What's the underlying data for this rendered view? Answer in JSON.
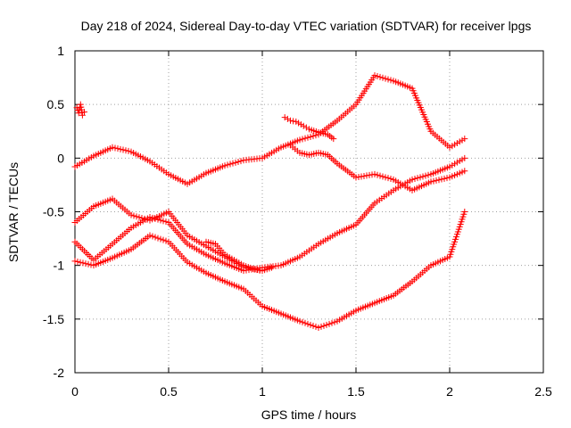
{
  "chart_data": {
    "type": "scatter",
    "title": "Day 218 of 2024, Sidereal Day-to-day VTEC variation (SDTVAR) for receiver lpgs",
    "xlabel": "GPS time / hours",
    "ylabel": "SDTVAR / TECUs",
    "xlim": [
      0,
      2.5
    ],
    "ylim": [
      -2,
      1
    ],
    "xticks": [
      0,
      0.5,
      1,
      1.5,
      2,
      2.5
    ],
    "xtick_labels": [
      "0",
      "0.5",
      "1",
      "1.5",
      "2",
      "2.5"
    ],
    "yticks": [
      -2,
      -1.5,
      -1,
      -0.5,
      0,
      0.5,
      1
    ],
    "ytick_labels": [
      "-2",
      "-1.5",
      "-1",
      "-0.5",
      "0",
      "0.5",
      "1"
    ],
    "grid": true,
    "marker": "plus",
    "color": "#ff0000",
    "series": [
      {
        "x": [
          0,
          0.1,
          0.2,
          0.3,
          0.4,
          0.5,
          0.6,
          0.7,
          0.8,
          0.9,
          1.0,
          1.1,
          1.2,
          1.3,
          1.4,
          1.5,
          1.6,
          1.7,
          1.8,
          1.9,
          2.0,
          2.08
        ],
        "y": [
          -0.08,
          0.02,
          0.1,
          0.06,
          -0.03,
          -0.15,
          -0.24,
          -0.14,
          -0.07,
          -0.02,
          0.0,
          0.1,
          0.17,
          0.22,
          0.35,
          0.5,
          0.77,
          0.72,
          0.65,
          0.25,
          0.1,
          0.18
        ]
      },
      {
        "x": [
          0.01,
          0.02,
          0.03,
          0.04,
          0.05
        ],
        "y": [
          0.47,
          0.42,
          0.5,
          0.4,
          0.43
        ]
      },
      {
        "x": [
          1.12,
          1.15,
          1.18,
          1.22,
          1.25,
          1.3,
          1.35,
          1.38
        ],
        "y": [
          0.38,
          0.35,
          0.34,
          0.3,
          0.27,
          0.24,
          0.22,
          0.18
        ]
      },
      {
        "x": [
          1.15,
          1.2,
          1.25,
          1.3,
          1.35,
          1.4,
          1.5,
          1.6,
          1.7,
          1.8,
          1.9,
          2.0,
          2.08
        ],
        "y": [
          0.12,
          0.05,
          0.03,
          0.05,
          0.03,
          -0.05,
          -0.18,
          -0.15,
          -0.2,
          -0.3,
          -0.22,
          -0.18,
          -0.12
        ]
      },
      {
        "x": [
          0,
          0.1,
          0.2,
          0.3,
          0.4,
          0.5,
          0.6,
          0.7,
          0.8,
          0.9,
          1.0,
          1.05
        ],
        "y": [
          -0.6,
          -0.45,
          -0.38,
          -0.53,
          -0.58,
          -0.5,
          -0.72,
          -0.82,
          -0.92,
          -1.02,
          -1.05,
          -1.02
        ]
      },
      {
        "x": [
          0,
          0.1,
          0.2,
          0.3,
          0.4,
          0.5,
          0.6,
          0.7,
          0.8,
          0.9,
          1.0,
          1.1,
          1.2,
          1.3,
          1.4,
          1.5,
          1.6,
          1.7,
          1.8,
          1.9,
          2.0,
          2.08
        ],
        "y": [
          -0.78,
          -0.95,
          -0.8,
          -0.65,
          -0.55,
          -0.6,
          -0.8,
          -0.9,
          -0.98,
          -1.05,
          -1.02,
          -1.0,
          -0.92,
          -0.8,
          -0.7,
          -0.62,
          -0.42,
          -0.3,
          -0.2,
          -0.15,
          -0.08,
          0.0
        ]
      },
      {
        "x": [
          0,
          0.1,
          0.2,
          0.3,
          0.4,
          0.5,
          0.6,
          0.7,
          0.8,
          0.9,
          1.0,
          1.1,
          1.2,
          1.3,
          1.4,
          1.5,
          1.6,
          1.7,
          1.8,
          1.9,
          2.0,
          2.08
        ],
        "y": [
          -0.96,
          -1.0,
          -0.93,
          -0.85,
          -0.72,
          -0.78,
          -0.97,
          -1.07,
          -1.15,
          -1.22,
          -1.38,
          -1.45,
          -1.52,
          -1.58,
          -1.52,
          -1.42,
          -1.35,
          -1.28,
          -1.15,
          -1.0,
          -0.92,
          -0.5
        ]
      },
      {
        "x": [
          0.7,
          0.75,
          0.8,
          0.85,
          0.9,
          0.95,
          1.0
        ],
        "y": [
          -0.78,
          -0.8,
          -0.9,
          -0.95,
          -1.0,
          -1.03,
          -1.05
        ]
      }
    ]
  }
}
